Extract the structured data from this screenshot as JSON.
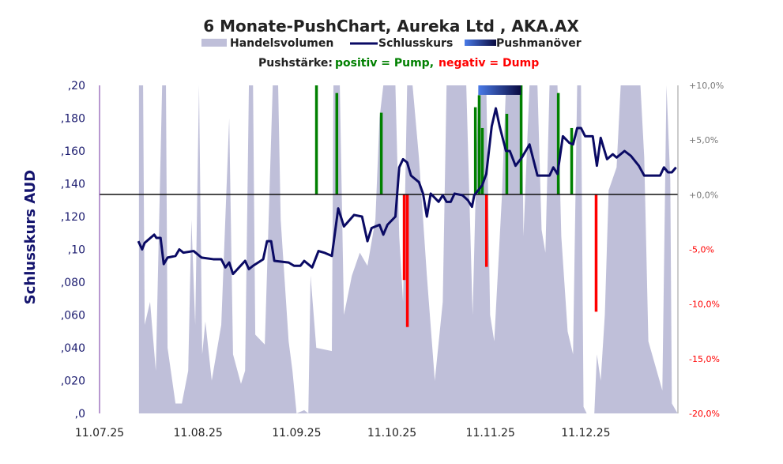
{
  "chart_data": {
    "type": "line",
    "title": "6 Monate-PushChart, Aureka Ltd , AKA.AX",
    "legend": {
      "volume": "Handelsvolumen",
      "close": "Schlusskurs",
      "push": "Pushmanöver",
      "strength_label": "Pushstärke:",
      "positive": "positiv = Pump,",
      "negative": "negativ = Dump",
      "placement": "top"
    },
    "ylabel": "Schlusskurs AUD",
    "ylim": [
      0,
      0.2
    ],
    "y_ticks": [
      ",0",
      ",020",
      ",040",
      ",060",
      ",080",
      ",10",
      ",120",
      ",140",
      ",160",
      ",180",
      ",20"
    ],
    "y2lim": [
      -20,
      10
    ],
    "y2_ticks": [
      "-20,0%",
      "-15,0%",
      "-10,0%",
      "-5,0%",
      "+0,0%",
      "+5,0%",
      "+10,0%"
    ],
    "x_tick_labels": [
      "11.07.25",
      "11.08.25",
      "11.09.25",
      "11.10.25",
      "11.11.25",
      "11.12.25"
    ],
    "x_tick_days": [
      0,
      31,
      62,
      92,
      123,
      153
    ],
    "xlim_days": [
      0,
      182
    ],
    "colors": {
      "volume": "#bfbfd9",
      "close": "#0a0a64",
      "pump": "#008000",
      "dump": "#ff0000",
      "push_start": "#4a7be8",
      "push_end": "#0a0a40",
      "zero_line": "#111111"
    },
    "close_series": {
      "days": [
        12.2,
        13.4,
        14.2,
        17.2,
        17.9,
        19.2,
        20.2,
        21.4,
        23.9,
        25.1,
        26.4,
        29.6,
        32.1,
        35.8,
        38.3,
        39.6,
        40.8,
        42.0,
        45.8,
        47.0,
        48.3,
        51.5,
        52.7,
        54.0,
        55.0,
        59.5,
        61.2,
        63.2,
        64.4,
        66.9,
        68.9,
        70.7,
        73.1,
        75.1,
        76.9,
        80.1,
        82.6,
        84.3,
        85.6,
        88.1,
        89.3,
        90.6,
        93.1,
        94.3,
        95.5,
        96.8,
        98.0,
        100.5,
        101.8,
        103.0,
        104.2,
        106.7,
        108.0,
        109.2,
        110.5,
        111.7,
        114.2,
        115.9,
        117.2,
        117.9,
        120.4,
        121.7,
        123.4,
        124.7,
        125.9,
        127.9,
        129.1,
        130.9,
        132.9,
        135.3,
        137.8,
        141.6,
        142.8,
        144.1,
        145.8,
        147.8,
        149.0,
        150.3,
        151.5,
        152.8,
        155.2,
        156.5,
        157.7,
        159.7,
        161.5,
        162.7,
        165.2,
        167.2,
        169.7,
        171.4,
        176.4,
        177.6,
        178.9,
        180.1,
        181.4
      ],
      "values": [
        0.105,
        0.1,
        0.104,
        0.109,
        0.107,
        0.107,
        0.091,
        0.095,
        0.096,
        0.1,
        0.098,
        0.099,
        0.095,
        0.094,
        0.094,
        0.089,
        0.092,
        0.085,
        0.093,
        0.088,
        0.09,
        0.094,
        0.105,
        0.105,
        0.093,
        0.092,
        0.09,
        0.09,
        0.093,
        0.089,
        0.099,
        0.098,
        0.096,
        0.125,
        0.114,
        0.121,
        0.12,
        0.105,
        0.113,
        0.115,
        0.109,
        0.115,
        0.12,
        0.15,
        0.155,
        0.153,
        0.145,
        0.141,
        0.134,
        0.12,
        0.134,
        0.129,
        0.133,
        0.129,
        0.129,
        0.134,
        0.133,
        0.13,
        0.126,
        0.133,
        0.139,
        0.146,
        0.175,
        0.186,
        0.175,
        0.16,
        0.16,
        0.151,
        0.156,
        0.164,
        0.145,
        0.145,
        0.15,
        0.146,
        0.169,
        0.165,
        0.164,
        0.174,
        0.174,
        0.169,
        0.169,
        0.151,
        0.168,
        0.155,
        0.158,
        0.156,
        0.16,
        0.157,
        0.151,
        0.145,
        0.145,
        0.15,
        0.147,
        0.147,
        0.15
      ]
    },
    "volume_series": {
      "unit": "percent of axis max",
      "days": [
        12.4,
        12.4,
        13.7,
        14.2,
        15.9,
        17.7,
        19.7,
        20.9,
        21.4,
        23.9,
        25.9,
        27.9,
        28.9,
        30.1,
        31.3,
        32.3,
        33.3,
        35.3,
        38.3,
        40.8,
        42.0,
        44.5,
        45.8,
        47.0,
        48.3,
        49.0,
        52.0,
        54.5,
        56.2,
        57.0,
        59.5,
        60.7,
        62.0,
        64.4,
        65.7,
        66.4,
        68.2,
        73.1,
        73.6,
        75.6,
        76.9,
        79.4,
        81.9,
        84.3,
        86.8,
        88.1,
        89.3,
        93.1,
        94.3,
        95.5,
        96.8,
        98.5,
        100.5,
        103.0,
        105.5,
        108.0,
        109.2,
        115.4,
        117.4,
        119.2,
        121.7,
        122.9,
        124.2,
        126.6,
        127.9,
        132.9,
        133.4,
        135.3,
        137.8,
        139.1,
        140.3,
        141.6,
        144.1,
        145.3,
        147.3,
        149.0,
        150.3,
        151.5,
        152.3,
        153.3,
        155.7,
        156.5,
        157.7,
        159.0,
        160.2,
        162.7,
        164.0,
        170.2,
        171.4,
        172.7,
        177.1,
        178.4,
        179.6,
        180.1,
        181.9
      ],
      "values": [
        0,
        100,
        100,
        27,
        34,
        13,
        100,
        100,
        20,
        3,
        3,
        13,
        59,
        27,
        100,
        18,
        28,
        10,
        27,
        90,
        18,
        9,
        13,
        100,
        100,
        24,
        21,
        100,
        100,
        59,
        22,
        13,
        0,
        1,
        0,
        42,
        20,
        19,
        100,
        100,
        30,
        42,
        49,
        45,
        59,
        90,
        100,
        100,
        54,
        34,
        100,
        100,
        78,
        42,
        10,
        34,
        100,
        100,
        30,
        100,
        100,
        30,
        22,
        66,
        100,
        100,
        54,
        100,
        100,
        56,
        49,
        100,
        100,
        54,
        25,
        18,
        100,
        100,
        2,
        0,
        0,
        18,
        10,
        30,
        68,
        75,
        100,
        100,
        78,
        22,
        7,
        100,
        71,
        3,
        0
      ]
    },
    "push_strength": {
      "days": [
        68.2,
        74.6,
        88.6,
        95.8,
        96.8,
        118.2,
        119.4,
        120.4,
        121.7,
        128.1,
        132.6,
        144.3,
        148.5,
        156.2
      ],
      "percent": [
        10,
        9.3,
        7.5,
        -7.8,
        -12.1,
        8,
        9.1,
        6.1,
        -6.6,
        7.4,
        10,
        9.3,
        6.1,
        -10.7
      ]
    },
    "push_maneuvers": [
      {
        "start_day": 119.2,
        "end_day": 132.6
      }
    ],
    "zero_line_price": 0.1335
  }
}
